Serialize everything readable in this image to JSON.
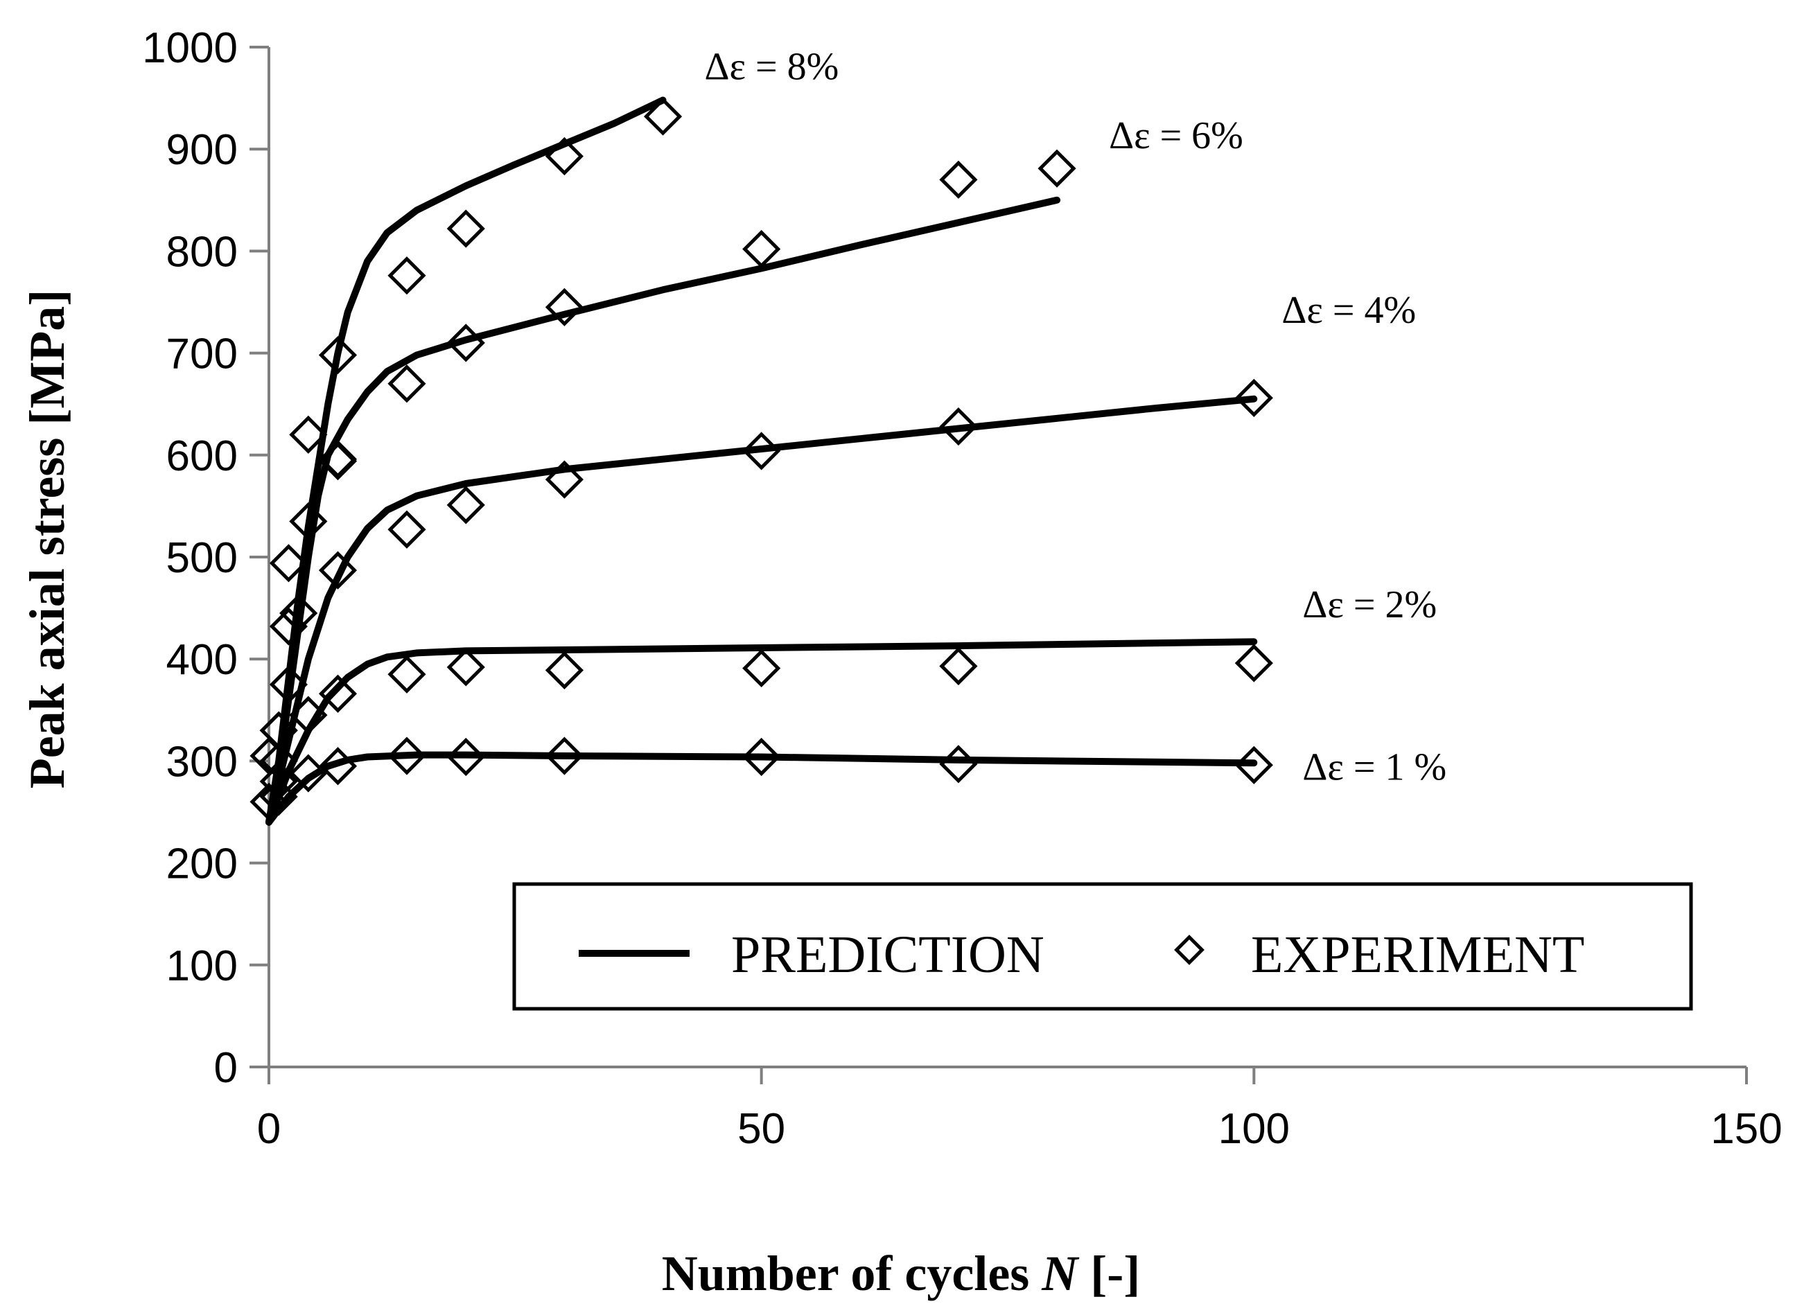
{
  "chart_data": {
    "type": "line",
    "title": "",
    "xlabel_parts": {
      "prefix": "Number of cycles ",
      "var": "N",
      "suffix": " [-]"
    },
    "ylabel": "Peak axial stress [MPa]",
    "xlim": [
      0,
      150
    ],
    "ylim": [
      0,
      1000
    ],
    "x_ticks": [
      0,
      50,
      100,
      150
    ],
    "y_ticks": [
      0,
      100,
      200,
      300,
      400,
      500,
      600,
      700,
      800,
      900,
      1000
    ],
    "grid": false,
    "legend": {
      "placement": "bottom-right",
      "prediction_label": "PREDICTION",
      "experiment_label": "EXPERIMENT"
    },
    "series": [
      {
        "name": "Δε = 8%",
        "annotation": "Δε = 8%",
        "prediction": [
          [
            0,
            240
          ],
          [
            1,
            300
          ],
          [
            2,
            380
          ],
          [
            3,
            460
          ],
          [
            4,
            530
          ],
          [
            5,
            590
          ],
          [
            6,
            650
          ],
          [
            7,
            700
          ],
          [
            8,
            740
          ],
          [
            10,
            790
          ],
          [
            12,
            818
          ],
          [
            15,
            840
          ],
          [
            20,
            864
          ],
          [
            25,
            885
          ],
          [
            30,
            905
          ],
          [
            35,
            925
          ],
          [
            40,
            948
          ]
        ],
        "experiment": [
          [
            0,
            305
          ],
          [
            1,
            330
          ],
          [
            2,
            432
          ],
          [
            2,
            494
          ],
          [
            4,
            535
          ],
          [
            4,
            620
          ],
          [
            7,
            596
          ],
          [
            7,
            698
          ],
          [
            14,
            776
          ],
          [
            20,
            822
          ],
          [
            30,
            893
          ],
          [
            40,
            932
          ]
        ]
      },
      {
        "name": "Δε = 6%",
        "annotation": "Δε = 6%",
        "prediction": [
          [
            0,
            240
          ],
          [
            1,
            290
          ],
          [
            2,
            360
          ],
          [
            3,
            430
          ],
          [
            4,
            500
          ],
          [
            5,
            560
          ],
          [
            6,
            600
          ],
          [
            8,
            635
          ],
          [
            10,
            662
          ],
          [
            12,
            682
          ],
          [
            15,
            698
          ],
          [
            20,
            713
          ],
          [
            30,
            738
          ],
          [
            40,
            762
          ],
          [
            50,
            783
          ],
          [
            60,
            806
          ],
          [
            70,
            828
          ],
          [
            80,
            850
          ]
        ],
        "experiment": [
          [
            1,
            330
          ],
          [
            3,
            445
          ],
          [
            7,
            594
          ],
          [
            14,
            670
          ],
          [
            20,
            710
          ],
          [
            30,
            745
          ],
          [
            50,
            802
          ],
          [
            70,
            870
          ],
          [
            80,
            881
          ]
        ]
      },
      {
        "name": "Δε = 4%",
        "annotation": "Δε = 4%",
        "prediction": [
          [
            0,
            240
          ],
          [
            2,
            320
          ],
          [
            4,
            400
          ],
          [
            6,
            460
          ],
          [
            8,
            500
          ],
          [
            10,
            528
          ],
          [
            12,
            546
          ],
          [
            15,
            560
          ],
          [
            20,
            572
          ],
          [
            30,
            586
          ],
          [
            40,
            596
          ],
          [
            50,
            606
          ],
          [
            60,
            616
          ],
          [
            70,
            626
          ],
          [
            80,
            636
          ],
          [
            90,
            646
          ],
          [
            100,
            655
          ]
        ],
        "experiment": [
          [
            1,
            300
          ],
          [
            2,
            375
          ],
          [
            4,
            345
          ],
          [
            7,
            487
          ],
          [
            14,
            527
          ],
          [
            20,
            551
          ],
          [
            30,
            576
          ],
          [
            50,
            604
          ],
          [
            70,
            628
          ],
          [
            100,
            656
          ]
        ]
      },
      {
        "name": "Δε = 2%",
        "annotation": "Δε = 2%",
        "prediction": [
          [
            0,
            240
          ],
          [
            2,
            290
          ],
          [
            4,
            330
          ],
          [
            6,
            362
          ],
          [
            8,
            382
          ],
          [
            10,
            395
          ],
          [
            12,
            402
          ],
          [
            15,
            406
          ],
          [
            20,
            408
          ],
          [
            30,
            409
          ],
          [
            50,
            411
          ],
          [
            70,
            413
          ],
          [
            100,
            417
          ]
        ],
        "experiment": [
          [
            1,
            265
          ],
          [
            4,
            345
          ],
          [
            7,
            366
          ],
          [
            14,
            385
          ],
          [
            20,
            392
          ],
          [
            30,
            389
          ],
          [
            50,
            391
          ],
          [
            70,
            393
          ],
          [
            100,
            396
          ]
        ]
      },
      {
        "name": "Δε = 1 %",
        "annotation": "Δε = 1 %",
        "prediction": [
          [
            0,
            240
          ],
          [
            2,
            265
          ],
          [
            4,
            283
          ],
          [
            6,
            295
          ],
          [
            8,
            301
          ],
          [
            10,
            304
          ],
          [
            15,
            306
          ],
          [
            20,
            306
          ],
          [
            30,
            305
          ],
          [
            50,
            304
          ],
          [
            70,
            301
          ],
          [
            100,
            298
          ]
        ],
        "experiment": [
          [
            0,
            260
          ],
          [
            1,
            280
          ],
          [
            4,
            288
          ],
          [
            7,
            295
          ],
          [
            14,
            305
          ],
          [
            20,
            304
          ],
          [
            30,
            305
          ],
          [
            50,
            304
          ],
          [
            70,
            297
          ],
          [
            100,
            296
          ]
        ]
      }
    ]
  }
}
